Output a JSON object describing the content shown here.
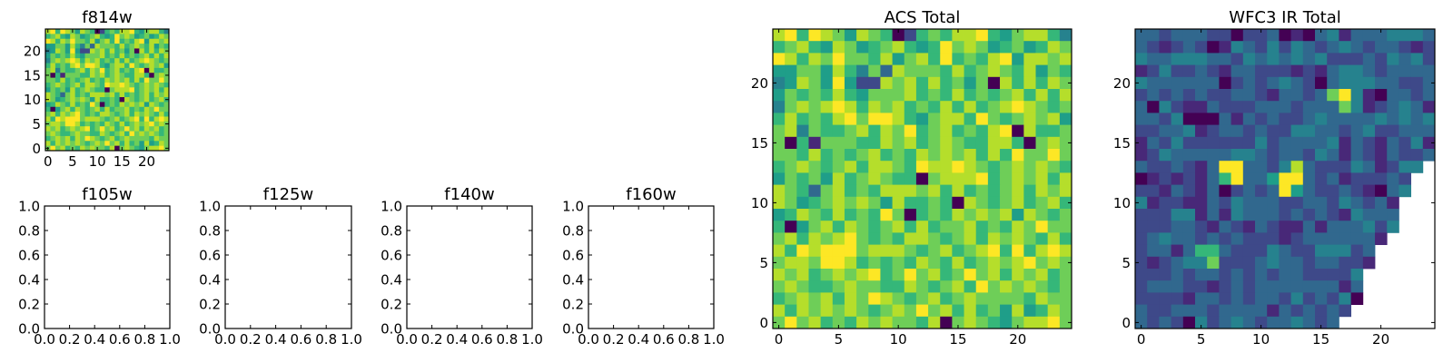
{
  "colors": {
    "viridis": [
      "#440154",
      "#482878",
      "#3e4989",
      "#31688e",
      "#26828e",
      "#1f9e89",
      "#35b779",
      "#6ece58",
      "#b5de2b",
      "#fde725"
    ],
    "masked": "#ffffff",
    "frame": "#000000"
  },
  "chart_data": [
    {
      "id": "f814w",
      "type": "heatmap",
      "title": "f814w",
      "xlim": [
        -0.5,
        24.5
      ],
      "ylim": [
        -0.5,
        24.5
      ],
      "xticks": [
        0,
        5,
        10,
        15,
        20
      ],
      "yticks": [
        0,
        5,
        10,
        15,
        20
      ],
      "value_scale": "levels 0-9 (viridis), rows listed from y=24 down to y=0",
      "grid_source": "acs"
    },
    {
      "id": "f105w",
      "type": "line",
      "title": "f105w",
      "empty": true,
      "xlim": [
        0,
        1
      ],
      "ylim": [
        0,
        1
      ],
      "xticks": [
        "0.0",
        "0.2",
        "0.4",
        "0.6",
        "0.8",
        "1.0"
      ],
      "yticks": [
        "0.0",
        "0.2",
        "0.4",
        "0.6",
        "0.8",
        "1.0"
      ]
    },
    {
      "id": "f125w",
      "type": "line",
      "title": "f125w",
      "empty": true,
      "xlim": [
        0,
        1
      ],
      "ylim": [
        0,
        1
      ],
      "xticks": [
        "0.0",
        "0.2",
        "0.4",
        "0.6",
        "0.8",
        "1.0"
      ],
      "yticks": [
        "0.0",
        "0.2",
        "0.4",
        "0.6",
        "0.8",
        "1.0"
      ]
    },
    {
      "id": "f140w",
      "type": "line",
      "title": "f140w",
      "empty": true,
      "xlim": [
        0,
        1
      ],
      "ylim": [
        0,
        1
      ],
      "xticks": [
        "0.0",
        "0.2",
        "0.4",
        "0.6",
        "0.8",
        "1.0"
      ],
      "yticks": [
        "0.0",
        "0.2",
        "0.4",
        "0.6",
        "0.8",
        "1.0"
      ]
    },
    {
      "id": "f160w",
      "type": "line",
      "title": "f160w",
      "empty": true,
      "xlim": [
        0,
        1
      ],
      "ylim": [
        0,
        1
      ],
      "xticks": [
        "0.0",
        "0.2",
        "0.4",
        "0.6",
        "0.8",
        "1.0"
      ],
      "yticks": [
        "0.0",
        "0.2",
        "0.4",
        "0.6",
        "0.8",
        "1.0"
      ]
    },
    {
      "id": "acs",
      "type": "heatmap",
      "title": "ACS Total",
      "xlim": [
        -0.5,
        24.5
      ],
      "ylim": [
        -0.5,
        24.5
      ],
      "xticks": [
        0,
        5,
        10,
        15,
        20
      ],
      "yticks": [
        0,
        5,
        10,
        15,
        20
      ],
      "value_scale": "levels 0-9 (viridis), rows listed from y=24 down to y=0",
      "grid": [
        "8969875876026768896578864",
        "6786587567865697875675687",
        "9868797768578696768958878",
        "5577586473877768678768576",
        "4587595228786867570868687",
        "5767686577786768676786868",
        "4787898687867686867898767",
        "6867689799865788697678785",
        "7847667868796786768908667",
        "7061777668786787668860787",
        "7768676786768787868697797",
        "6787678688769889876787876",
        "5767586787660788896787868",
        "8763786768887868676786878",
        "8756787875866760876786786",
        "5687686769706768787858767",
        "6057868767868677867687977",
        "7868789767688767868787686",
        "8698999788876786789696898",
        "7887998676768768678789787",
        "8786787896797867978687867",
        "7876678776687678697878767",
        "6787868798767867877776877",
        "8687878767879786867585687",
        "7978676878776807876578897"
      ]
    },
    {
      "id": "wfc3",
      "type": "heatmap",
      "title": "WFC3 IR Total",
      "xlim": [
        -0.5,
        24.5
      ],
      "ylim": [
        -0.5,
        24.5
      ],
      "xticks": [
        0,
        5,
        10,
        15,
        20
      ],
      "yticks": [
        0,
        5,
        10,
        15,
        20
      ],
      "value_scale": "levels 0-9 (viridis), '.' = masked (white), rows listed from y=24 down to y=0",
      "grid": [
        "3323332202230103413334443",
        "3212320143242432343233212",
        "4334443324343434222324342",
        "1242232133222121344323333",
        "4333333023234320344433223",
        "2323232233213323794103323",
        "3042113222333233374123431",
        "3324000313232234333343434",
        "2233412332322443323422333",
        "1324222222423333413213241",
        "1243333344323324313213223",
        "322321399332483222431244.",
        "01212136933599323122232..",
        "22132130232395322321034..",
        "4122113243332233243231...",
        "2224413143332323214333...",
        "2223321321321131333424...",
        "234332323222123333331....",
        "23313663222432244423.....",
        "21234472223433233221.....",
        "2223233232323322224......",
        "2333221232333333313......",
        "2222133232332423240......",
        "322333233331323232.......",
        "32320423432334323........"
      ]
    }
  ]
}
